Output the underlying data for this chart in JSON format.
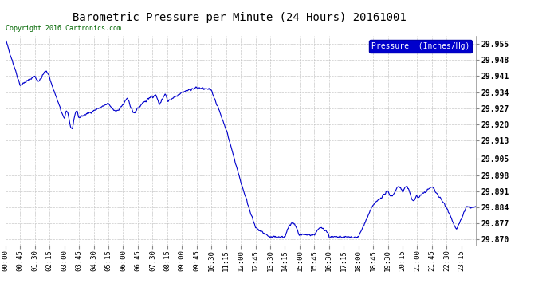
{
  "title": "Barometric Pressure per Minute (24 Hours) 20161001",
  "copyright_text": "Copyright 2016 Cartronics.com",
  "legend_label": "Pressure  (Inches/Hg)",
  "line_color": "#0000cc",
  "background_color": "#ffffff",
  "grid_color": "#bbbbbb",
  "yticks": [
    29.87,
    29.877,
    29.884,
    29.891,
    29.898,
    29.905,
    29.913,
    29.92,
    29.927,
    29.934,
    29.941,
    29.948,
    29.955
  ],
  "ylim": [
    29.8675,
    29.9585
  ],
  "xtick_labels": [
    "00:00",
    "00:45",
    "01:30",
    "02:15",
    "03:00",
    "03:45",
    "04:30",
    "05:15",
    "06:00",
    "06:45",
    "07:30",
    "08:15",
    "09:00",
    "09:45",
    "10:30",
    "11:15",
    "12:00",
    "12:45",
    "13:30",
    "14:15",
    "15:00",
    "15:45",
    "16:30",
    "17:15",
    "18:00",
    "18:45",
    "19:30",
    "20:15",
    "21:00",
    "21:45",
    "22:30",
    "23:15"
  ]
}
